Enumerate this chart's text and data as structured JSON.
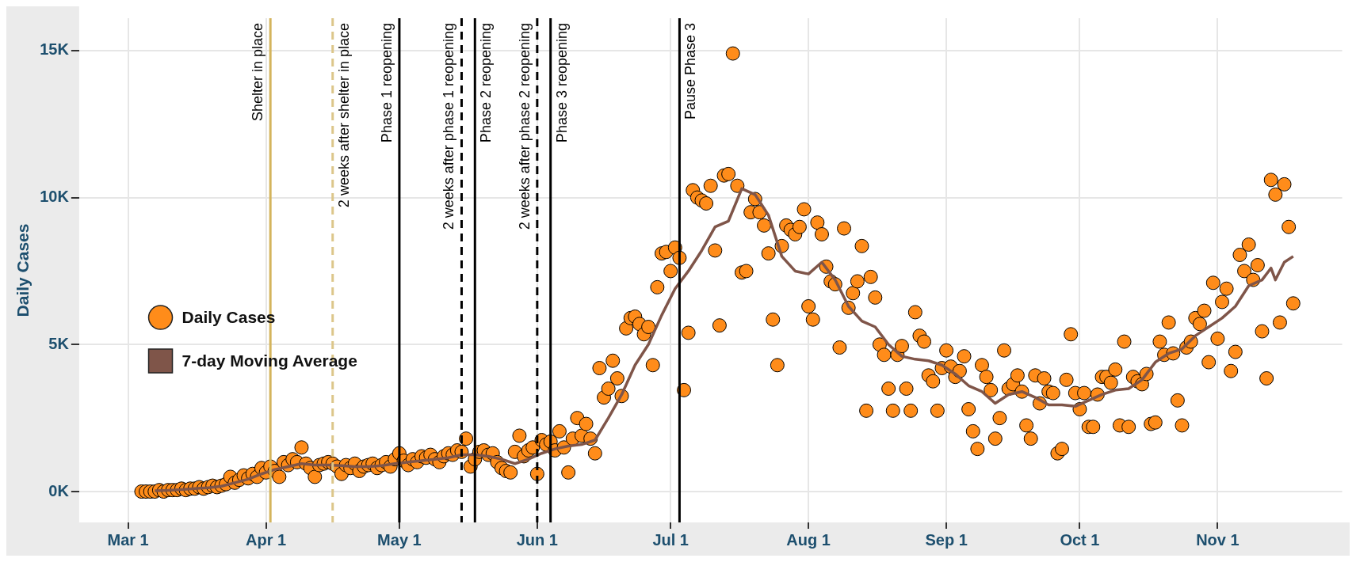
{
  "chart_data": {
    "type": "scatter",
    "ylabel": "Daily Cases",
    "legend": "left",
    "grid": true,
    "xlim": [
      "--02-19",
      "--11-29"
    ],
    "xticks": [
      {
        "value": "--03-01",
        "label": "Mar 1"
      },
      {
        "value": "--04-01",
        "label": "Apr 1"
      },
      {
        "value": "--05-01",
        "label": "May 1"
      },
      {
        "value": "--06-01",
        "label": "Jun 1"
      },
      {
        "value": "--07-01",
        "label": "Jul 1"
      },
      {
        "value": "--08-01",
        "label": "Aug 1"
      },
      {
        "value": "--09-01",
        "label": "Sep 1"
      },
      {
        "value": "--10-01",
        "label": "Oct 1"
      },
      {
        "value": "--11-01",
        "label": "Nov 1"
      }
    ],
    "ylim": [
      -1050,
      16100
    ],
    "yticks": [
      {
        "value": 0,
        "label": "0K"
      },
      {
        "value": 5000,
        "label": "5K"
      },
      {
        "value": 10000,
        "label": "10K"
      },
      {
        "value": 15000,
        "label": "15K"
      }
    ],
    "series": [
      {
        "name": "Daily Cases",
        "type": "scatter",
        "color": "#ff8c1a",
        "marker": "circle",
        "x": [
          "--03-04",
          "--03-05",
          "--03-06",
          "--03-07",
          "--03-08",
          "--03-09",
          "--03-10",
          "--03-11",
          "--03-12",
          "--03-13",
          "--03-14",
          "--03-15",
          "--03-16",
          "--03-17",
          "--03-18",
          "--03-19",
          "--03-20",
          "--03-21",
          "--03-22",
          "--03-23",
          "--03-24",
          "--03-25",
          "--03-26",
          "--03-27",
          "--03-28",
          "--03-29",
          "--03-30",
          "--03-31",
          "--04-01",
          "--04-02",
          "--04-03",
          "--04-04",
          "--04-05",
          "--04-06",
          "--04-07",
          "--04-08",
          "--04-09",
          "--04-10",
          "--04-11",
          "--04-12",
          "--04-13",
          "--04-14",
          "--04-15",
          "--04-16",
          "--04-17",
          "--04-18",
          "--04-19",
          "--04-20",
          "--04-21",
          "--04-22",
          "--04-23",
          "--04-24",
          "--04-25",
          "--04-26",
          "--04-27",
          "--04-28",
          "--04-29",
          "--04-30",
          "--05-01",
          "--05-02",
          "--05-03",
          "--05-04",
          "--05-05",
          "--05-06",
          "--05-07",
          "--05-08",
          "--05-09",
          "--05-10",
          "--05-11",
          "--05-12",
          "--05-13",
          "--05-14",
          "--05-15",
          "--05-16",
          "--05-17",
          "--05-18",
          "--05-19",
          "--05-20",
          "--05-21",
          "--05-22",
          "--05-23",
          "--05-24",
          "--05-25",
          "--05-26",
          "--05-27",
          "--05-28",
          "--05-29",
          "--05-30",
          "--05-31",
          "--06-01",
          "--06-02",
          "--06-03",
          "--06-04",
          "--06-05",
          "--06-06",
          "--06-07",
          "--06-08",
          "--06-09",
          "--06-10",
          "--06-11",
          "--06-12",
          "--06-13",
          "--06-14",
          "--06-15",
          "--06-16",
          "--06-17",
          "--06-18",
          "--06-19",
          "--06-20",
          "--06-21",
          "--06-22",
          "--06-23",
          "--06-24",
          "--06-25",
          "--06-26",
          "--06-27",
          "--06-28",
          "--06-29",
          "--06-30",
          "--07-01",
          "--07-02",
          "--07-03",
          "--07-04",
          "--07-05",
          "--07-06",
          "--07-07",
          "--07-08",
          "--07-09",
          "--07-10",
          "--07-11",
          "--07-12",
          "--07-13",
          "--07-14",
          "--07-15",
          "--07-16",
          "--07-17",
          "--07-18",
          "--07-19",
          "--07-20",
          "--07-21",
          "--07-22",
          "--07-23",
          "--07-24",
          "--07-25",
          "--07-26",
          "--07-27",
          "--07-28",
          "--07-29",
          "--07-30",
          "--07-31",
          "--08-01",
          "--08-02",
          "--08-03",
          "--08-04",
          "--08-05",
          "--08-06",
          "--08-07",
          "--08-08",
          "--08-09",
          "--08-10",
          "--08-11",
          "--08-12",
          "--08-13",
          "--08-14",
          "--08-15",
          "--08-16",
          "--08-17",
          "--08-18",
          "--08-19",
          "--08-20",
          "--08-21",
          "--08-22",
          "--08-23",
          "--08-24",
          "--08-25",
          "--08-26",
          "--08-27",
          "--08-28",
          "--08-29",
          "--08-30",
          "--08-31",
          "--09-01",
          "--09-02",
          "--09-03",
          "--09-04",
          "--09-05",
          "--09-06",
          "--09-07",
          "--09-08",
          "--09-09",
          "--09-10",
          "--09-11",
          "--09-12",
          "--09-13",
          "--09-14",
          "--09-15",
          "--09-16",
          "--09-17",
          "--09-18",
          "--09-19",
          "--09-20",
          "--09-21",
          "--09-22",
          "--09-23",
          "--09-24",
          "--09-25",
          "--09-26",
          "--09-27",
          "--09-28",
          "--09-29",
          "--09-30",
          "--10-01",
          "--10-02",
          "--10-03",
          "--10-04",
          "--10-05",
          "--10-06",
          "--10-07",
          "--10-08",
          "--10-09",
          "--10-10",
          "--10-11",
          "--10-12",
          "--10-13",
          "--10-14",
          "--10-15",
          "--10-16",
          "--10-17",
          "--10-18",
          "--10-19",
          "--10-20",
          "--10-21",
          "--10-22",
          "--10-23",
          "--10-24",
          "--10-25",
          "--10-26",
          "--10-27",
          "--10-28",
          "--10-29",
          "--10-30",
          "--10-31",
          "--11-01",
          "--11-02",
          "--11-03",
          "--11-04",
          "--11-05",
          "--11-06",
          "--11-07",
          "--11-08",
          "--11-09",
          "--11-10",
          "--11-11",
          "--11-12",
          "--11-13",
          "--11-14",
          "--11-15",
          "--11-16",
          "--11-17",
          "--11-18"
        ],
        "values": [
          0,
          0,
          0,
          0,
          50,
          0,
          50,
          50,
          50,
          100,
          50,
          100,
          100,
          150,
          100,
          150,
          200,
          150,
          200,
          250,
          500,
          300,
          400,
          550,
          450,
          600,
          500,
          800,
          650,
          850,
          700,
          500,
          1000,
          900,
          1100,
          1000,
          1500,
          950,
          800,
          500,
          900,
          950,
          1000,
          950,
          850,
          600,
          900,
          800,
          950,
          700,
          850,
          900,
          950,
          800,
          900,
          1000,
          850,
          1100,
          1300,
          1050,
          900,
          1100,
          1000,
          1200,
          1150,
          1250,
          1100,
          1000,
          1200,
          1300,
          1250,
          1400,
          1350,
          1800,
          850,
          1100,
          1350,
          1400,
          1250,
          1300,
          1000,
          800,
          700,
          650,
          1350,
          1900,
          1200,
          1400,
          1500,
          600,
          1750,
          1600,
          1700,
          1400,
          2050,
          1500,
          650,
          1800,
          2500,
          1900,
          2300,
          1800,
          1300,
          4200,
          3200,
          3500,
          4450,
          3850,
          3250,
          5550,
          5900,
          5950,
          5700,
          5350,
          5600,
          4300,
          6950,
          8100,
          8150,
          7500,
          8300,
          7950,
          3450,
          5400,
          10250,
          10000,
          9900,
          9800,
          10400,
          8200,
          5650,
          10750,
          10800,
          14900,
          10400,
          7450,
          7500,
          9500,
          9950,
          9500,
          9050,
          8100,
          5850,
          4300,
          8350,
          9050,
          8900,
          8750,
          9000,
          9600,
          6300,
          5850,
          9150,
          8750,
          7650,
          7150,
          7050,
          4900,
          8950,
          6250,
          6750,
          7150,
          8350,
          2750,
          7300,
          6600,
          5000,
          4650,
          3500,
          2750,
          4650,
          4950,
          3500,
          2750,
          6100,
          5300,
          5100,
          3950,
          3750,
          2750,
          4200,
          4800,
          4250,
          3900,
          4100,
          4600,
          2800,
          2050,
          1450,
          4300,
          3900,
          3450,
          1800,
          2500,
          4800,
          3500,
          3650,
          3950,
          3400,
          2250,
          1800,
          3950,
          3000,
          3850,
          3400,
          3350,
          1300,
          1450,
          3800,
          5350,
          3350,
          2800,
          3350,
          2200,
          2200,
          3300,
          3900,
          3900,
          3700,
          4150,
          2250,
          5100,
          2200,
          3900,
          3750,
          3650,
          4000,
          2300,
          2350,
          5100,
          4650,
          5750,
          4700,
          3100,
          2250,
          4900,
          5100,
          5900,
          5700,
          6150,
          4400,
          7100,
          5200,
          6450,
          6900,
          4100,
          4750,
          8050,
          7500,
          8400,
          7200,
          7700,
          5450,
          3850,
          10600,
          10100,
          5750,
          10450,
          9000,
          6400
        ]
      },
      {
        "name": "7-day Moving Average",
        "type": "line",
        "color": "#7f5549",
        "x": [
          "--03-07",
          "--03-10",
          "--03-13",
          "--03-16",
          "--03-19",
          "--03-22",
          "--03-25",
          "--03-28",
          "--03-31",
          "--04-03",
          "--04-06",
          "--04-09",
          "--04-12",
          "--04-15",
          "--04-18",
          "--04-21",
          "--04-24",
          "--04-27",
          "--04-30",
          "--05-03",
          "--05-06",
          "--05-09",
          "--05-12",
          "--05-15",
          "--05-18",
          "--05-21",
          "--05-24",
          "--05-27",
          "--05-30",
          "--06-02",
          "--06-05",
          "--06-08",
          "--06-11",
          "--06-14",
          "--06-17",
          "--06-20",
          "--06-23",
          "--06-26",
          "--06-29",
          "--07-02",
          "--07-05",
          "--07-08",
          "--07-11",
          "--07-14",
          "--07-17",
          "--07-20",
          "--07-23",
          "--07-26",
          "--07-29",
          "--08-01",
          "--08-04",
          "--08-07",
          "--08-10",
          "--08-13",
          "--08-16",
          "--08-19",
          "--08-22",
          "--08-25",
          "--08-28",
          "--08-31",
          "--09-03",
          "--09-06",
          "--09-09",
          "--09-12",
          "--09-15",
          "--09-18",
          "--09-21",
          "--09-24",
          "--09-27",
          "--09-30",
          "--10-03",
          "--10-06",
          "--10-09",
          "--10-12",
          "--10-15",
          "--10-18",
          "--10-21",
          "--10-24",
          "--10-27",
          "--10-30",
          "--11-02",
          "--11-05",
          "--11-08",
          "--11-11",
          "--11-13",
          "--11-14",
          "--11-16",
          "--11-18"
        ],
        "values": [
          30,
          40,
          70,
          100,
          130,
          180,
          300,
          420,
          600,
          750,
          850,
          950,
          900,
          900,
          880,
          850,
          850,
          880,
          950,
          1000,
          1050,
          1100,
          1150,
          1250,
          1250,
          1200,
          1100,
          950,
          1100,
          1300,
          1450,
          1550,
          1600,
          1750,
          2500,
          3300,
          4300,
          5000,
          6000,
          6900,
          7500,
          8200,
          9000,
          9200,
          10300,
          10100,
          9400,
          8000,
          7500,
          7400,
          7800,
          7200,
          6300,
          5800,
          5600,
          5000,
          4600,
          4500,
          4450,
          4300,
          4000,
          3600,
          3400,
          3000,
          3300,
          3400,
          3200,
          2950,
          2950,
          2900,
          3100,
          3300,
          3450,
          3500,
          3800,
          4400,
          4700,
          4850,
          5300,
          5600,
          5900,
          6300,
          7000,
          7200,
          7600,
          7200,
          7800,
          8000
        ]
      }
    ],
    "ref_lines": [
      {
        "axis": "x",
        "value": "--04-02",
        "label": "Shelter in place",
        "color": "#d4b45c",
        "line_style": "solid"
      },
      {
        "axis": "x",
        "value": "--04-16",
        "label": "2 weeks after shelter in place",
        "color": "#dcc68a",
        "line_style": "dashed"
      },
      {
        "axis": "x",
        "value": "--05-01",
        "label": "Phase 1 reopening",
        "color": "#000000",
        "line_style": "solid"
      },
      {
        "axis": "x",
        "value": "--05-15",
        "label": "2 weeks after phase 1 reopening",
        "color": "#000000",
        "line_style": "dashed"
      },
      {
        "axis": "x",
        "value": "--05-18",
        "label": "Phase 2 reopening",
        "color": "#000000",
        "line_style": "solid"
      },
      {
        "axis": "x",
        "value": "--06-01",
        "label": "2 weeks after phase 2 reopening",
        "color": "#000000",
        "line_style": "dashed"
      },
      {
        "axis": "x",
        "value": "--06-04",
        "label": "Phase 3 reopening",
        "color": "#000000",
        "line_style": "solid"
      },
      {
        "axis": "x",
        "value": "--07-03",
        "label": "Pause Phase 3",
        "color": "#000000",
        "line_style": "solid"
      }
    ]
  }
}
